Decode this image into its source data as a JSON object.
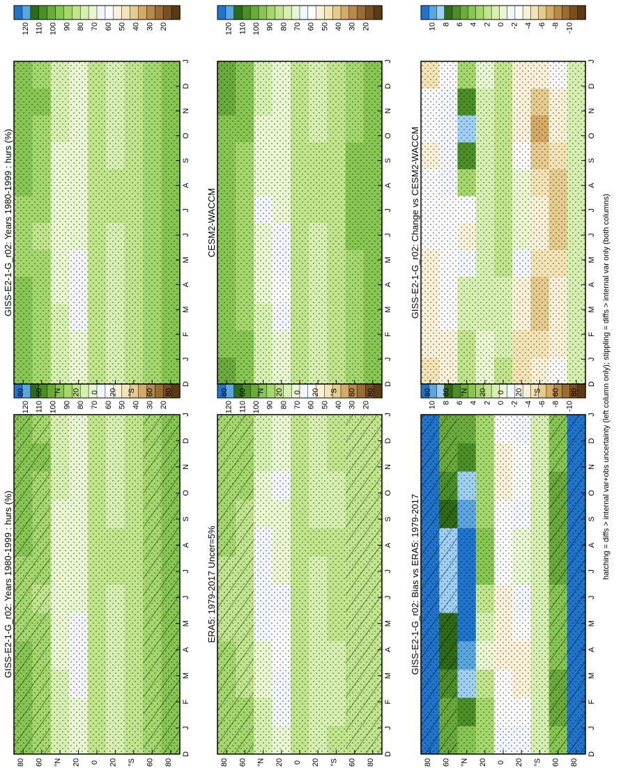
{
  "page": {
    "footnote": "hatching = diffs > internal var+obs uncertainty (left column only); stippling = diffs > internal var only (both columns)"
  },
  "colors": {
    "abs_scale": [
      "#5c3a12",
      "#7a5020",
      "#9a6c30",
      "#b88a48",
      "#d4aa66",
      "#e6cb8e",
      "#f2e4b4",
      "#f8f1d8",
      "#fbfbfb",
      "#f2f6fb",
      "#e9f6d2",
      "#d7efb0",
      "#c1e58c",
      "#a5d86c",
      "#88c654",
      "#6aab3c",
      "#4c8e28",
      "#2e6a18",
      "#5aa7e0",
      "#1f74cc"
    ],
    "diff_scale": [
      "#5c3a12",
      "#7a5020",
      "#9a6c30",
      "#b88a48",
      "#d4aa66",
      "#e6cb8e",
      "#f2e4b4",
      "#f8f1d8",
      "#fbfbfb",
      "#f2f6fb",
      "#e9f6d2",
      "#d7efb0",
      "#c1e58c",
      "#a5d86c",
      "#88c654",
      "#6aab3c",
      "#4c8e28",
      "#2e6a18",
      "#9fd0f2",
      "#5aa7e0",
      "#1f74cc"
    ],
    "frame": "#000000",
    "axis_text": "#000000"
  },
  "chart_data": [
    {
      "type": "heatmap",
      "title": "GISS-E2-1-G_r02: Years 1980-1999 : hurs (%)",
      "x_ticks": [
        "D",
        "J",
        "F",
        "M",
        "A",
        "M",
        "J",
        "J",
        "A",
        "S",
        "O",
        "N",
        "D",
        "J"
      ],
      "y_ticks": [
        "80",
        "60",
        "°N",
        "20",
        "0",
        "20",
        "°S",
        "60",
        "80"
      ],
      "colorbar_ticks": [
        "120",
        "110",
        "100",
        "90",
        "80",
        "70",
        "60",
        "50",
        "40",
        "30",
        "20"
      ],
      "colorbar_range": [
        10,
        130
      ],
      "x_months": [
        "J",
        "F",
        "M",
        "A",
        "M",
        "J",
        "J",
        "A",
        "S",
        "O",
        "N",
        "D"
      ],
      "lat_bands": [
        "80N",
        "60N",
        "40N",
        "20N",
        "0",
        "20S",
        "40S",
        "60S",
        "80S"
      ],
      "values_by_lat_month": [
        [
          97,
          96,
          95,
          94,
          93,
          93,
          93,
          94,
          95,
          97,
          98,
          98
        ],
        [
          92,
          91,
          91,
          90,
          88,
          87,
          88,
          90,
          92,
          93,
          94,
          93
        ],
        [
          80,
          79,
          77,
          75,
          72,
          70,
          70,
          71,
          74,
          77,
          79,
          80
        ],
        [
          74,
          72,
          68,
          64,
          65,
          70,
          72,
          73,
          72,
          72,
          73,
          74
        ],
        [
          84,
          83,
          83,
          84,
          85,
          86,
          86,
          86,
          86,
          85,
          84,
          84
        ],
        [
          76,
          76,
          77,
          77,
          79,
          81,
          83,
          83,
          80,
          78,
          77,
          77
        ],
        [
          83,
          82,
          82,
          82,
          83,
          83,
          83,
          82,
          82,
          82,
          83,
          83
        ],
        [
          90,
          91,
          91,
          90,
          90,
          90,
          91,
          91,
          91,
          91,
          90,
          90
        ],
        [
          96,
          97,
          97,
          97,
          97,
          98,
          98,
          98,
          97,
          97,
          96,
          96
        ]
      ],
      "hatching": "left column only",
      "stippling": true
    },
    {
      "type": "heatmap",
      "title": "GISS-E2-1-G_r02: Years 1980-1999 : hurs (%)",
      "x_ticks": [
        "D",
        "J",
        "F",
        "M",
        "A",
        "M",
        "J",
        "J",
        "A",
        "S",
        "O",
        "N",
        "D",
        "J"
      ],
      "y_ticks": [
        "80",
        "60",
        "°N",
        "20",
        "0",
        "20",
        "°S",
        "60",
        "80"
      ],
      "colorbar_ticks": [
        "120",
        "110",
        "100",
        "90",
        "80",
        "70",
        "60",
        "50",
        "40",
        "30",
        "20"
      ],
      "colorbar_range": [
        10,
        130
      ],
      "x_months": [
        "J",
        "F",
        "M",
        "A",
        "M",
        "J",
        "J",
        "A",
        "S",
        "O",
        "N",
        "D"
      ],
      "lat_bands": [
        "80N",
        "60N",
        "40N",
        "20N",
        "0",
        "20S",
        "40S",
        "60S",
        "80S"
      ],
      "values_by_lat_month": [
        [
          97,
          96,
          95,
          94,
          93,
          93,
          93,
          94,
          95,
          97,
          98,
          98
        ],
        [
          92,
          91,
          91,
          90,
          88,
          87,
          88,
          90,
          92,
          93,
          94,
          93
        ],
        [
          80,
          79,
          77,
          75,
          72,
          70,
          70,
          71,
          74,
          77,
          79,
          80
        ],
        [
          74,
          72,
          68,
          64,
          65,
          70,
          72,
          73,
          72,
          72,
          73,
          74
        ],
        [
          84,
          83,
          83,
          84,
          85,
          86,
          86,
          86,
          86,
          85,
          84,
          84
        ],
        [
          76,
          76,
          77,
          77,
          79,
          81,
          83,
          83,
          80,
          78,
          77,
          77
        ],
        [
          83,
          82,
          82,
          82,
          83,
          83,
          83,
          82,
          82,
          82,
          83,
          83
        ],
        [
          90,
          91,
          91,
          90,
          90,
          90,
          91,
          91,
          91,
          91,
          90,
          90
        ],
        [
          96,
          97,
          97,
          97,
          97,
          98,
          98,
          98,
          97,
          97,
          96,
          96
        ]
      ],
      "stippling": true
    },
    {
      "type": "heatmap",
      "title": "ERA5: 1979-2017 Uncer=5%",
      "x_ticks": [
        "D",
        "J",
        "F",
        "M",
        "A",
        "M",
        "J",
        "J",
        "A",
        "S",
        "O",
        "N",
        "D",
        "J"
      ],
      "y_ticks": [
        "80",
        "60",
        "°N",
        "20",
        "0",
        "20",
        "°S",
        "60",
        "80"
      ],
      "colorbar_ticks": [
        "120",
        "110",
        "100",
        "90",
        "80",
        "70",
        "60",
        "50",
        "40",
        "30",
        "20"
      ],
      "colorbar_range": [
        10,
        130
      ],
      "x_months": [
        "J",
        "F",
        "M",
        "A",
        "M",
        "J",
        "J",
        "A",
        "S",
        "O",
        "N",
        "D"
      ],
      "lat_bands": [
        "80N",
        "60N",
        "40N",
        "20N",
        "0",
        "20S",
        "40S",
        "60S",
        "80S"
      ],
      "values_by_lat_month": [
        [
          90,
          90,
          89,
          88,
          86,
          85,
          86,
          88,
          90,
          91,
          91,
          90
        ],
        [
          88,
          88,
          87,
          86,
          84,
          82,
          83,
          85,
          87,
          88,
          89,
          88
        ],
        [
          78,
          77,
          74,
          70,
          68,
          67,
          67,
          68,
          71,
          74,
          77,
          78
        ],
        [
          70,
          67,
          64,
          60,
          62,
          66,
          70,
          71,
          70,
          69,
          70,
          70
        ],
        [
          83,
          82,
          82,
          83,
          84,
          84,
          84,
          84,
          84,
          84,
          83,
          83
        ],
        [
          76,
          76,
          77,
          78,
          79,
          80,
          81,
          82,
          79,
          78,
          77,
          76
        ],
        [
          82,
          81,
          81,
          81,
          82,
          82,
          82,
          82,
          81,
          81,
          82,
          82
        ],
        [
          86,
          86,
          86,
          86,
          86,
          86,
          86,
          86,
          86,
          86,
          86,
          86
        ],
        [
          86,
          87,
          87,
          86,
          86,
          86,
          86,
          86,
          86,
          86,
          86,
          86
        ]
      ],
      "hatching": "left column only",
      "stippling": true
    },
    {
      "type": "heatmap",
      "title": "CESM2-WACCM",
      "x_ticks": [
        "D",
        "J",
        "F",
        "M",
        "A",
        "M",
        "J",
        "J",
        "A",
        "S",
        "O",
        "N",
        "D",
        "J"
      ],
      "y_ticks": [
        "80",
        "60",
        "°N",
        "20",
        "0",
        "20",
        "°S",
        "60",
        "80"
      ],
      "colorbar_ticks": [
        "120",
        "110",
        "100",
        "90",
        "80",
        "70",
        "60",
        "50",
        "40",
        "30",
        "20"
      ],
      "colorbar_range": [
        10,
        130
      ],
      "x_months": [
        "J",
        "F",
        "M",
        "A",
        "M",
        "J",
        "J",
        "A",
        "S",
        "O",
        "N",
        "D"
      ],
      "lat_bands": [
        "80N",
        "60N",
        "40N",
        "20N",
        "0",
        "20S",
        "40S",
        "60S",
        "80S"
      ],
      "values_by_lat_month": [
        [
          100,
          99,
          98,
          97,
          96,
          95,
          95,
          96,
          98,
          99,
          100,
          100
        ],
        [
          95,
          94,
          93,
          92,
          90,
          89,
          90,
          91,
          93,
          94,
          95,
          95
        ],
        [
          78,
          77,
          76,
          74,
          72,
          70,
          69,
          70,
          72,
          75,
          77,
          78
        ],
        [
          74,
          72,
          67,
          63,
          64,
          69,
          71,
          72,
          71,
          71,
          72,
          74
        ],
        [
          82,
          82,
          82,
          82,
          83,
          84,
          84,
          84,
          84,
          83,
          82,
          82
        ],
        [
          80,
          80,
          80,
          80,
          80,
          81,
          82,
          82,
          82,
          81,
          80,
          80
        ],
        [
          86,
          86,
          86,
          85,
          86,
          86,
          86,
          86,
          86,
          86,
          86,
          86
        ],
        [
          92,
          93,
          93,
          93,
          93,
          94,
          94,
          94,
          94,
          93,
          93,
          92
        ],
        [
          95,
          96,
          96,
          96,
          96,
          97,
          97,
          97,
          97,
          96,
          96,
          95
        ]
      ],
      "stippling": true
    },
    {
      "type": "heatmap",
      "title": "GISS-E2-1-G_r02: Bias vs ERA5: 1979-2017",
      "x_ticks": [
        "D",
        "J",
        "F",
        "M",
        "A",
        "M",
        "J",
        "J",
        "A",
        "S",
        "O",
        "N",
        "D",
        "J"
      ],
      "y_ticks": [
        "80",
        "60",
        "°N",
        "20",
        "0",
        "20",
        "°S",
        "60",
        "80"
      ],
      "colorbar_ticks": [
        "10",
        "8",
        "6",
        "4",
        "2",
        "0",
        "-2",
        "-4",
        "-6",
        "-8",
        "-10"
      ],
      "colorbar_range": [
        -11,
        11
      ],
      "x_months": [
        "J",
        "F",
        "M",
        "A",
        "M",
        "J",
        "J",
        "A",
        "S",
        "O",
        "N",
        "D"
      ],
      "lat_bands": [
        "80N",
        "60N",
        "40N",
        "20N",
        "0",
        "20S",
        "40S",
        "60S",
        "80S"
      ],
      "values_by_lat_month": [
        [
          11,
          11,
          11,
          11,
          11,
          11,
          11,
          11,
          11,
          11,
          11,
          11
        ],
        [
          5,
          5,
          6,
          7,
          7,
          8,
          8,
          8,
          7,
          6,
          5,
          5
        ],
        [
          4,
          6,
          8,
          9,
          10,
          10,
          10,
          10,
          9,
          8,
          6,
          5
        ],
        [
          3,
          3,
          2,
          0,
          1,
          2,
          4,
          4,
          3,
          3,
          3,
          3
        ],
        [
          -1,
          -2,
          -2,
          -3,
          -3,
          -3,
          -2,
          -2,
          -2,
          -3,
          -3,
          -2
        ],
        [
          -1,
          -2,
          -3,
          -3,
          -2,
          -1,
          0,
          0,
          -1,
          -2,
          -2,
          -1
        ],
        [
          1,
          1,
          1,
          1,
          1,
          1,
          1,
          1,
          1,
          1,
          1,
          1
        ],
        [
          4,
          5,
          5,
          4,
          4,
          4,
          5,
          5,
          5,
          5,
          4,
          4
        ],
        [
          10,
          10,
          11,
          11,
          11,
          11,
          11,
          11,
          11,
          11,
          10,
          10
        ]
      ],
      "hatching": "left column only",
      "stippling": true
    },
    {
      "type": "heatmap",
      "title": "GISS-E2-1-G_r02: Change vs CESM2-WACCM",
      "x_ticks": [
        "D",
        "J",
        "F",
        "M",
        "A",
        "M",
        "J",
        "J",
        "A",
        "S",
        "O",
        "N",
        "D",
        "J"
      ],
      "y_ticks": [
        "80",
        "60",
        "°N",
        "20",
        "0",
        "20",
        "°S",
        "60",
        "80"
      ],
      "colorbar_ticks": [
        "10",
        "8",
        "6",
        "4",
        "2",
        "0",
        "-2",
        "-4",
        "-6",
        "-8",
        "-10"
      ],
      "colorbar_range": [
        -11,
        11
      ],
      "x_months": [
        "J",
        "F",
        "M",
        "A",
        "M",
        "J",
        "J",
        "A",
        "S",
        "O",
        "N",
        "D"
      ],
      "lat_bands": [
        "80N",
        "60N",
        "40N",
        "20N",
        "0",
        "20S",
        "40S",
        "60S",
        "80S"
      ],
      "values_by_lat_month": [
        [
          -4,
          -3,
          -3,
          -3,
          -3,
          -2,
          -2,
          -2,
          -3,
          -2,
          -2,
          -4
        ],
        [
          -3,
          -3,
          -2,
          -2,
          -2,
          -2,
          -2,
          -1,
          -1,
          -1,
          -1,
          -2
        ],
        [
          2,
          2,
          1,
          1,
          -1,
          -3,
          -2,
          3,
          6,
          8,
          6,
          3
        ],
        [
          0,
          0,
          1,
          1,
          1,
          1,
          1,
          1,
          1,
          1,
          1,
          0
        ],
        [
          2,
          1,
          1,
          1,
          2,
          2,
          2,
          2,
          2,
          2,
          2,
          2
        ],
        [
          -4,
          -4,
          -3,
          -3,
          -1,
          0,
          0,
          0,
          -2,
          -3,
          -3,
          -3
        ],
        [
          -3,
          -4,
          -5,
          -5,
          -4,
          -3,
          -3,
          -4,
          -5,
          -6,
          -5,
          -3
        ],
        [
          -2,
          -3,
          -3,
          -3,
          -4,
          -5,
          -5,
          -5,
          -4,
          -3,
          -3,
          -2
        ],
        [
          1,
          1,
          1,
          1,
          1,
          1,
          1,
          1,
          1,
          1,
          1,
          1
        ]
      ],
      "stippling": true
    }
  ]
}
